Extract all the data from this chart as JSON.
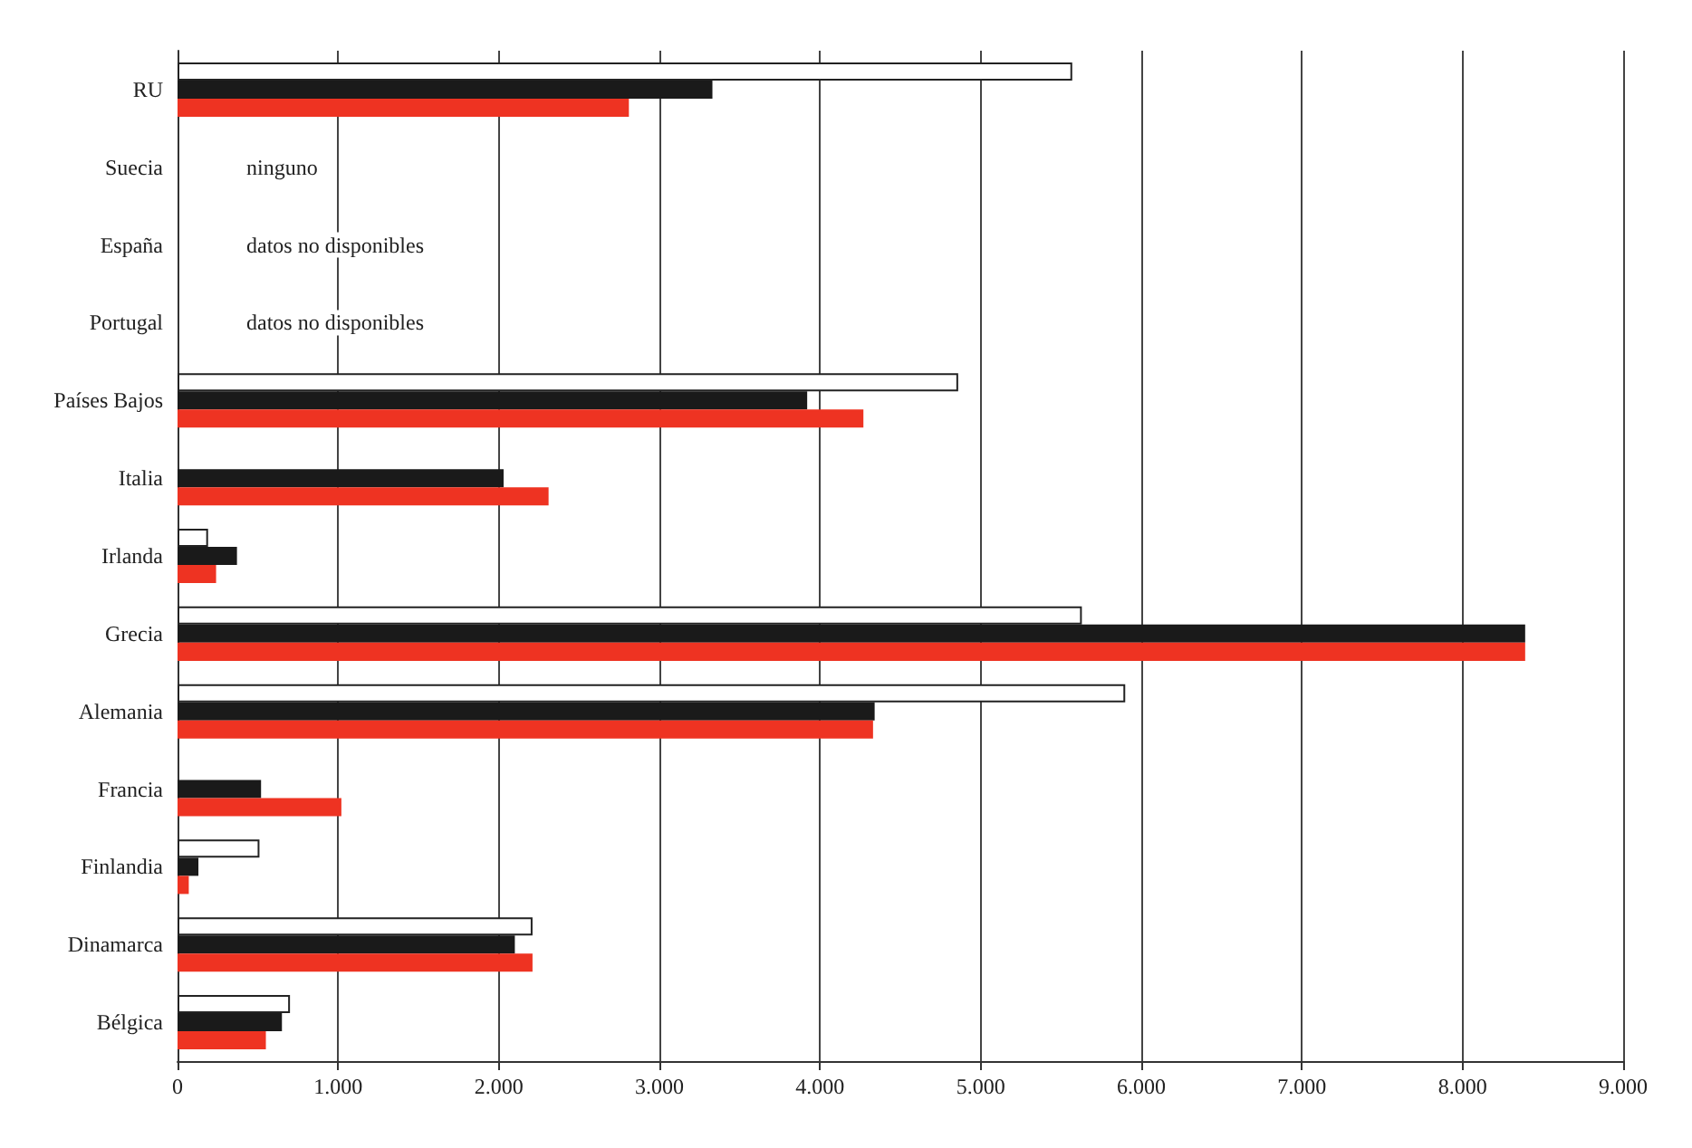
{
  "chart_data": {
    "type": "bar",
    "orientation": "horizontal",
    "categories": [
      "RU",
      "Suecia",
      "España",
      "Portugal",
      "Países Bajos",
      "Italia",
      "Irlanda",
      "Grecia",
      "Alemania",
      "Francia",
      "Finlandia",
      "Dinamarca",
      "Bélgica"
    ],
    "series": [
      {
        "color": "#ffffff",
        "values": [
          5570,
          null,
          null,
          null,
          4860,
          null,
          190,
          5630,
          5900,
          null,
          510,
          2210,
          700
        ]
      },
      {
        "color": "#1a1a1a",
        "values": [
          3330,
          null,
          null,
          null,
          3920,
          2030,
          370,
          8390,
          4340,
          520,
          130,
          2100,
          650
        ]
      },
      {
        "color": "#ee3322",
        "values": [
          2810,
          null,
          null,
          null,
          4270,
          2310,
          240,
          8390,
          4330,
          1020,
          70,
          2210,
          550
        ]
      }
    ],
    "xlim": [
      0,
      9000
    ],
    "xticks": [
      0,
      {
        "value": 1000,
        "label": "1.000"
      },
      {
        "value": 2000,
        "label": "2.000"
      },
      {
        "value": 3000,
        "label": "3.000"
      },
      {
        "value": 4000,
        "label": "4.000"
      },
      {
        "value": 5000,
        "label": "5.000"
      },
      {
        "value": 6000,
        "label": "6.000"
      },
      {
        "value": 7000,
        "label": "7.000"
      },
      {
        "value": 8000,
        "label": "8.000"
      },
      {
        "value": 9000,
        "label": "9.000"
      }
    ],
    "grid": "x",
    "annotations": [
      "ninguno",
      "datos no disponibles",
      "datos no disponibles"
    ]
  }
}
